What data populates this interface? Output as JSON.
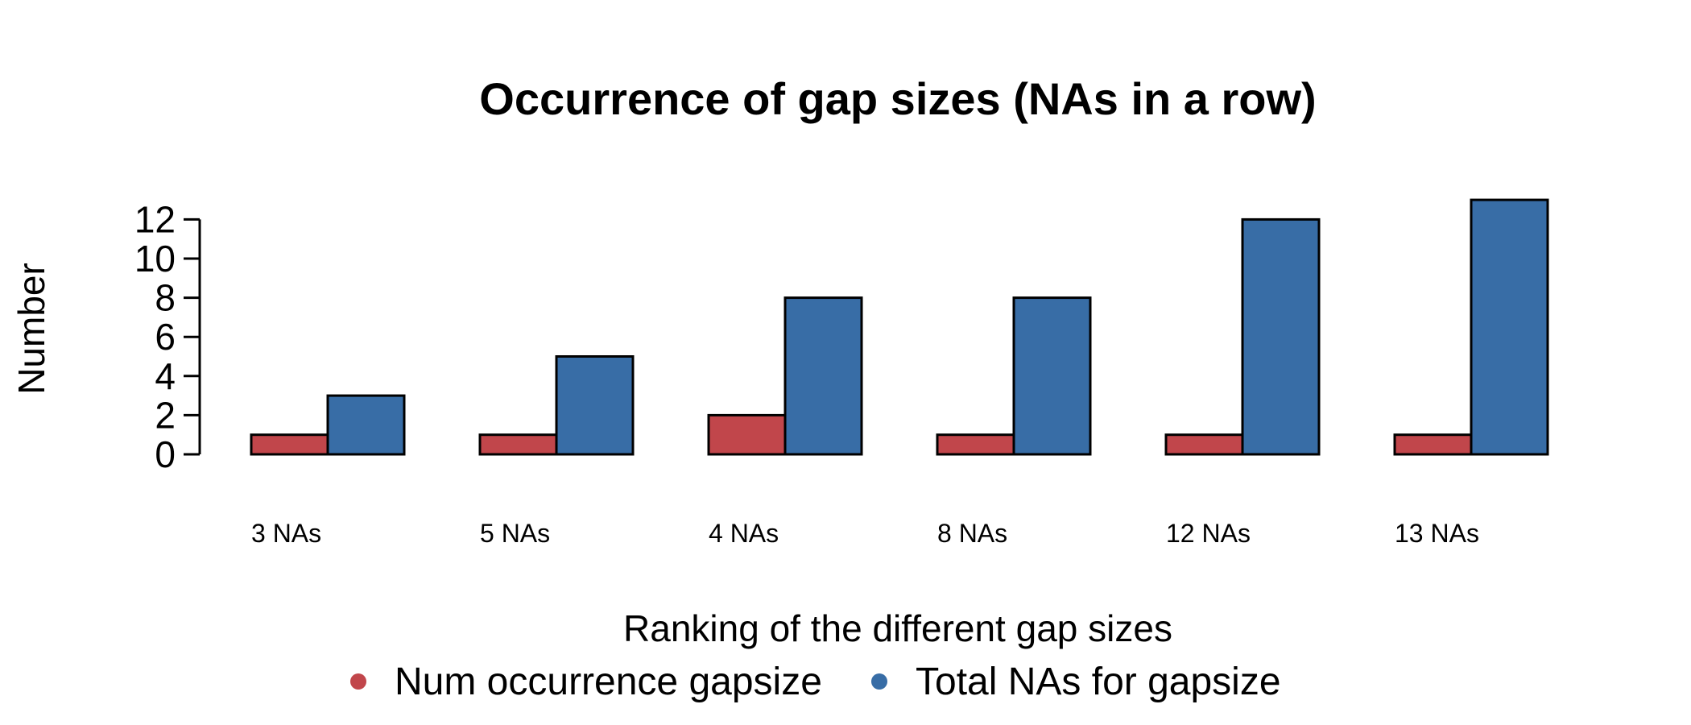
{
  "chart_data": {
    "type": "bar",
    "title": "Occurrence of gap sizes (NAs in a row)",
    "xlabel": "Ranking of the different gap sizes",
    "ylabel": "Number",
    "categories": [
      "3 NAs",
      "5 NAs",
      "4 NAs",
      "8 NAs",
      "12 NAs",
      "13 NAs"
    ],
    "series": [
      {
        "name": "Num occurrence gapsize",
        "color": "#C1464B",
        "values": [
          1,
          1,
          2,
          1,
          1,
          1
        ]
      },
      {
        "name": "Total NAs for gapsize",
        "color": "#386DA6",
        "values": [
          3,
          5,
          8,
          8,
          12,
          13
        ]
      }
    ],
    "yticks": [
      0,
      2,
      4,
      6,
      8,
      10,
      12
    ],
    "ylim": [
      0,
      13
    ],
    "grid": false,
    "legend_position": "bottom"
  }
}
